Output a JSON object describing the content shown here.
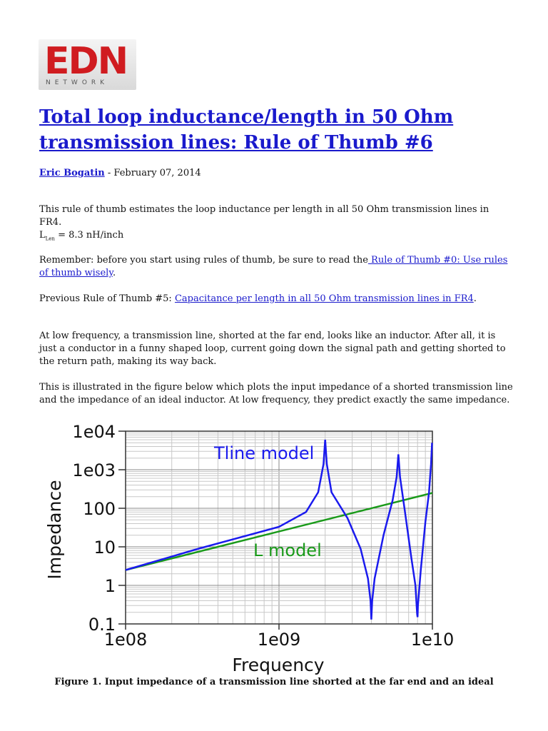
{
  "logo": {
    "main": "EDN",
    "sub": "NETWORK"
  },
  "title": "Total loop inductance/length in 50 Ohm transmission lines: Rule of Thumb #6",
  "byline": {
    "author": "Eric Bogatin",
    "separator": " - ",
    "date": "February 07, 2014"
  },
  "p1": "This rule of thumb estimates the loop inductance per length in all 50 Ohm transmission lines in FR4.",
  "formula": {
    "symbol": "L",
    "subscript": "Len",
    "value": " = 8.3 nH/inch"
  },
  "p2": {
    "text": "Remember: before you start using rules of thumb, be sure to read the",
    "link": " Rule of Thumb #0: Use rules of thumb wisely",
    "end": "."
  },
  "p3": {
    "text": "Previous Rule of Thumb #5: ",
    "link": "Capacitance per length in all 50 Ohm transmission lines in FR4",
    "end": "."
  },
  "p4": "At low frequency, a transmission line, shorted at the far end, looks like an inductor. After all, it is just a conductor in a funny shaped loop, current going down the signal path and getting shorted to the return path, making its way back.",
  "p5": "This is illustrated in the figure below which plots the input impedance of a shorted transmission line and the impedance of an ideal inductor. At low frequency, they predict exactly the same impedance.",
  "caption": "Figure 1. Input impedance of a transmission line shorted at the far end and an ideal",
  "chart_data": {
    "type": "line",
    "title": "",
    "xlabel": "Frequency",
    "ylabel": "Impedance",
    "xscale": "log",
    "yscale": "log",
    "xlim": [
      100000000.0,
      10000000000.0
    ],
    "ylim": [
      0.1,
      10000
    ],
    "xticks": [
      "1e08",
      "1e09",
      "1e10"
    ],
    "yticks": [
      "1e04",
      "1e03",
      "100",
      "10",
      "1",
      "0.1"
    ],
    "colors": {
      "tline": "#1a1aee",
      "lmodel": "#1a9a1a"
    },
    "annotations": [
      "Tline model",
      "L model"
    ],
    "series": [
      {
        "name": "L model",
        "x": [
          100000000.0,
          10000000000.0
        ],
        "y": [
          2.5,
          250
        ]
      },
      {
        "name": "Tline model",
        "x": [
          100000000.0,
          300000000.0,
          1000000000.0,
          1500000000.0,
          1800000000.0,
          1950000000.0,
          2000000000.0,
          2050000000.0,
          2200000000.0,
          2800000000.0,
          3400000000.0,
          3800000000.0,
          3950000000.0,
          4000000000.0,
          4050000000.0,
          4200000000.0,
          4800000000.0,
          5500000000.0,
          5850000000.0,
          6000000000.0,
          6150000000.0,
          6600000000.0,
          7300000000.0,
          7750000000.0,
          7950000000.0,
          8000000000.0,
          8050000000.0,
          8400000000.0,
          9000000000.0,
          9500000000.0,
          9800000000.0,
          9950000000.0
        ],
        "y": [
          2.5,
          9,
          33,
          80,
          260,
          1400,
          6000,
          1400,
          260,
          55,
          9,
          1.5,
          0.4,
          0.13,
          0.4,
          1.5,
          20,
          160,
          650,
          2500,
          650,
          90,
          5,
          1.0,
          0.18,
          0.15,
          0.3,
          2.5,
          45,
          250,
          1400,
          5000
        ]
      }
    ]
  }
}
